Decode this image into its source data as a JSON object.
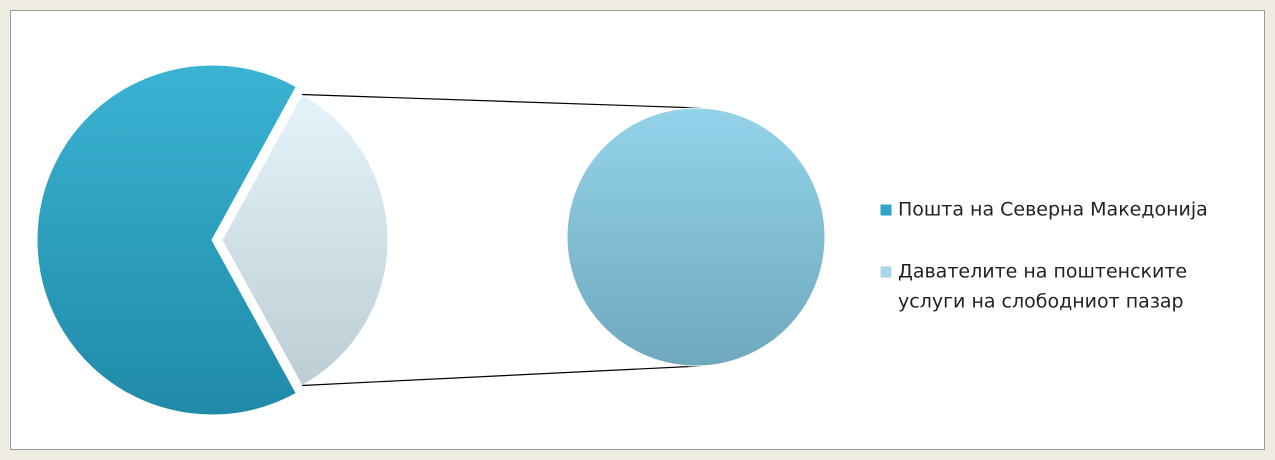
{
  "chart_data": {
    "type": "pie",
    "categories": [
      "Пошта на Северна Македонија",
      "Давателите на поштенските услуги на слободниот пазар"
    ],
    "legend_lines": [
      [
        "Пошта на Северна Македонија"
      ],
      [
        "Давателите на поштенските",
        "услуги на слободниот пазар"
      ]
    ],
    "values": [
      66,
      34
    ],
    "colors": [
      "#2ea6c6",
      "#dbeef5"
    ],
    "secondary_color": "#8ccbe0",
    "legend": "right"
  }
}
